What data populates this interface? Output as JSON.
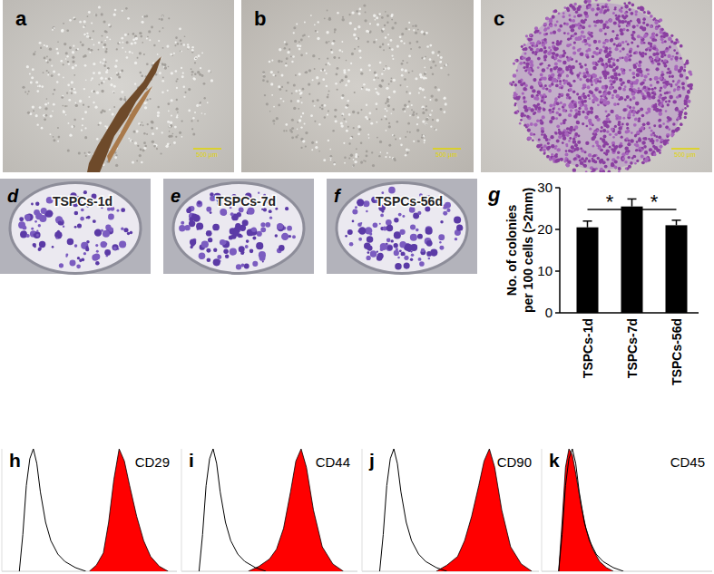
{
  "images": [
    {
      "panel": "a",
      "scale_bar": "500 µm"
    },
    {
      "panel": "b",
      "scale_bar": "500 µm"
    },
    {
      "panel": "c",
      "scale_bar": "500 µm"
    }
  ],
  "dishes": [
    {
      "panel": "d",
      "label": "TSPCs-1d"
    },
    {
      "panel": "e",
      "label": "TSPCs-7d"
    },
    {
      "panel": "f",
      "label": "TSPCs-56d"
    }
  ],
  "chart_data": [
    {
      "type": "bar",
      "panel": "g",
      "categories": [
        "TSPCs-1d",
        "TSPCs-7d",
        "TSPCs-56d"
      ],
      "values": [
        20.5,
        25.5,
        21
      ],
      "errors": [
        1.5,
        1.8,
        1.2
      ],
      "color": "#000000",
      "y_label": "No. of colonies per 100 cells (>2mm)",
      "ylim": [
        0,
        30
      ],
      "yticks": [
        0,
        10,
        20,
        30
      ],
      "grid": false,
      "annotations": [
        {
          "text": "*",
          "categories": [
            0,
            1
          ]
        },
        {
          "text": "*",
          "categories": [
            1,
            2
          ]
        }
      ]
    },
    {
      "type": "line",
      "panel": "h",
      "title": "CD29",
      "xlim": [
        0,
        100
      ],
      "ylim": [
        0,
        100
      ],
      "tick_labels": false,
      "series": [
        {
          "type": "line",
          "color": "#000000",
          "x": [
            10,
            12,
            14,
            16,
            18,
            20,
            22,
            25,
            28,
            32,
            36,
            42,
            48
          ],
          "values": [
            0,
            30,
            70,
            92,
            100,
            88,
            65,
            40,
            25,
            14,
            8,
            3,
            0
          ]
        },
        {
          "type": "area",
          "color": "#ff0000",
          "x": [
            50,
            54,
            58,
            61,
            64,
            67,
            70,
            73,
            77,
            81,
            85,
            90,
            95
          ],
          "values": [
            0,
            5,
            15,
            40,
            75,
            100,
            90,
            70,
            45,
            25,
            12,
            4,
            0
          ]
        }
      ]
    },
    {
      "type": "line",
      "panel": "i",
      "title": "CD44",
      "xlim": [
        0,
        100
      ],
      "ylim": [
        0,
        100
      ],
      "tick_labels": false,
      "series": [
        {
          "type": "line",
          "color": "#000000",
          "x": [
            10,
            12,
            14,
            16,
            18,
            20,
            22,
            25,
            28,
            32,
            36,
            42,
            48
          ],
          "values": [
            0,
            30,
            70,
            92,
            100,
            88,
            65,
            40,
            25,
            14,
            8,
            3,
            0
          ]
        },
        {
          "type": "area",
          "color": "#ff0000",
          "x": [
            38,
            44,
            50,
            54,
            58,
            62,
            65,
            68,
            71,
            75,
            80,
            86,
            92
          ],
          "values": [
            0,
            4,
            10,
            18,
            35,
            65,
            90,
            100,
            85,
            50,
            20,
            6,
            0
          ]
        }
      ]
    },
    {
      "type": "line",
      "panel": "j",
      "title": "CD90",
      "xlim": [
        0,
        100
      ],
      "ylim": [
        0,
        100
      ],
      "tick_labels": false,
      "series": [
        {
          "type": "line",
          "color": "#000000",
          "x": [
            10,
            12,
            14,
            16,
            18,
            20,
            22,
            25,
            28,
            32,
            36,
            42,
            48
          ],
          "values": [
            0,
            30,
            70,
            92,
            100,
            88,
            65,
            40,
            25,
            14,
            8,
            3,
            0
          ]
        },
        {
          "type": "area",
          "color": "#ff0000",
          "x": [
            42,
            48,
            54,
            58,
            62,
            66,
            69,
            72,
            75,
            79,
            84,
            90,
            96
          ],
          "values": [
            0,
            5,
            12,
            25,
            45,
            70,
            90,
            100,
            85,
            50,
            20,
            6,
            0
          ]
        }
      ]
    },
    {
      "type": "line",
      "panel": "k",
      "title": "CD45",
      "xlim": [
        0,
        100
      ],
      "ylim": [
        0,
        100
      ],
      "tick_labels": false,
      "series": [
        {
          "type": "line",
          "color": "#000000",
          "x": [
            10,
            12,
            14,
            16,
            18,
            20,
            22,
            25,
            28,
            32,
            36,
            42,
            48
          ],
          "values": [
            0,
            30,
            70,
            92,
            100,
            88,
            65,
            40,
            25,
            14,
            8,
            3,
            0
          ]
        },
        {
          "type": "area",
          "color": "#ff0000",
          "x": [
            10,
            12,
            14,
            16,
            18,
            20,
            23,
            26,
            30,
            34,
            38,
            42
          ],
          "values": [
            0,
            40,
            85,
            100,
            95,
            80,
            55,
            35,
            18,
            8,
            3,
            0
          ]
        }
      ]
    }
  ]
}
